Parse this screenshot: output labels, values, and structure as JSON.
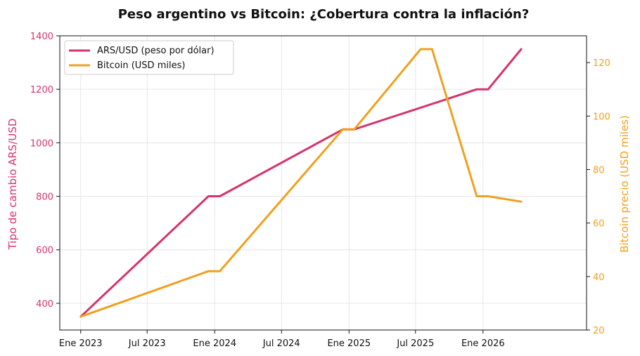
{
  "chart_data": {
    "type": "line",
    "title": "Peso argentino vs Bitcoin: ¿Cobertura contra la inflación?",
    "x": [
      "2023-01",
      "2023-07",
      "2024-01",
      "2024-07",
      "2025-01",
      "2025-07",
      "2026-01"
    ],
    "x_tick_labels": [
      "Ene 2023",
      "Jul 2023",
      "Ene 2024",
      "Jul 2024",
      "Ene 2025",
      "Jul 2025",
      "Ene 2026"
    ],
    "xlim": [
      "2022-11-05",
      "2026-10-10"
    ],
    "grid": true,
    "legend_position": "top-left",
    "y_left": {
      "label": "Tipo de cambio ARS/USD",
      "lim": [
        300,
        1400
      ],
      "ticks": [
        400,
        600,
        800,
        1000,
        1200,
        1400
      ],
      "color": "#d6336c"
    },
    "y_right": {
      "label": "Bitcoin precio (USD miles)",
      "lim": [
        20,
        130
      ],
      "ticks": [
        20,
        40,
        60,
        80,
        100,
        120
      ],
      "color": "#f0a020"
    },
    "series": [
      {
        "name": "ARS/USD (peso por dólar)",
        "axis": "left",
        "color": "#d6336c",
        "points": [
          {
            "x": "2023-01-01",
            "y": 350
          },
          {
            "x": "2023-12-15",
            "y": 800
          },
          {
            "x": "2024-01-15",
            "y": 800
          },
          {
            "x": "2024-12-15",
            "y": 1050
          },
          {
            "x": "2025-01-15",
            "y": 1050
          },
          {
            "x": "2025-12-15",
            "y": 1200
          },
          {
            "x": "2026-01-15",
            "y": 1200
          },
          {
            "x": "2026-04-15",
            "y": 1350
          }
        ]
      },
      {
        "name": "Bitcoin (USD miles)",
        "axis": "right",
        "color": "#f0a020",
        "points": [
          {
            "x": "2023-01-01",
            "y": 25
          },
          {
            "x": "2023-12-15",
            "y": 42
          },
          {
            "x": "2024-01-15",
            "y": 42
          },
          {
            "x": "2024-12-15",
            "y": 95
          },
          {
            "x": "2025-01-15",
            "y": 95
          },
          {
            "x": "2025-07-15",
            "y": 125
          },
          {
            "x": "2025-08-15",
            "y": 125
          },
          {
            "x": "2025-12-15",
            "y": 70
          },
          {
            "x": "2026-01-15",
            "y": 70
          },
          {
            "x": "2026-04-15",
            "y": 68
          }
        ]
      }
    ]
  }
}
